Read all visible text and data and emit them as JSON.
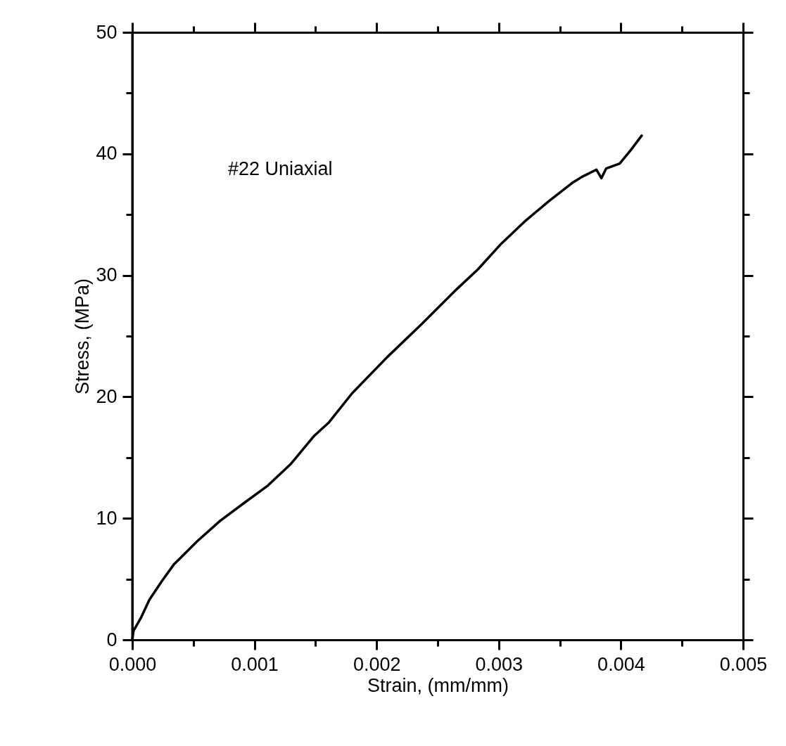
{
  "chart_data": {
    "type": "line",
    "xlabel": "Strain, (mm/mm)",
    "ylabel": "Stress, (MPa)",
    "annotations": [
      "#22 Uniaxial"
    ],
    "x": [
      0,
      1e-05,
      7e-05,
      0.00014,
      0.00024,
      0.00034,
      0.00053,
      0.00072,
      0.00092,
      0.00111,
      0.0013,
      0.00149,
      0.00161,
      0.0018,
      0.00209,
      0.00237,
      0.00266,
      0.00283,
      0.00302,
      0.00322,
      0.00341,
      0.0036,
      0.00368,
      0.0038,
      0.00384,
      0.00388,
      0.00399,
      0.00408,
      0.00417
    ],
    "series": [
      {
        "color": "#000000",
        "values": [
          0,
          0.75,
          1.8,
          3.3,
          4.8,
          6.2,
          8.1,
          9.8,
          11.3,
          12.7,
          14.5,
          16.8,
          17.9,
          20.3,
          23.3,
          26.0,
          28.9,
          30.5,
          32.6,
          34.5,
          36.1,
          37.6,
          38.1,
          38.7,
          38.0,
          38.8,
          39.2,
          40.3,
          41.5
        ]
      }
    ],
    "xlim": [
      0,
      0.005
    ],
    "ylim": [
      0,
      50
    ],
    "xticks": [
      {
        "value": 0,
        "label": "0.000"
      },
      {
        "value": 0.0005,
        "label": null
      },
      {
        "value": 0.001,
        "label": "0.001"
      },
      {
        "value": 0.0015,
        "label": null
      },
      {
        "value": 0.002,
        "label": "0.002"
      },
      {
        "value": 0.0025,
        "label": null
      },
      {
        "value": 0.003,
        "label": "0.003"
      },
      {
        "value": 0.0035,
        "label": null
      },
      {
        "value": 0.004,
        "label": "0.004"
      },
      {
        "value": 0.0045,
        "label": null
      },
      {
        "value": 0.005,
        "label": "0.005"
      }
    ],
    "yticks": [
      0,
      {
        "value": 5,
        "label": null
      },
      10,
      {
        "value": 15,
        "label": null
      },
      20,
      {
        "value": 25,
        "label": null
      },
      30,
      {
        "value": 35,
        "label": null
      },
      40,
      {
        "value": 45,
        "label": null
      },
      50
    ],
    "grid": false,
    "marker": "none",
    "line_style": "solid"
  }
}
